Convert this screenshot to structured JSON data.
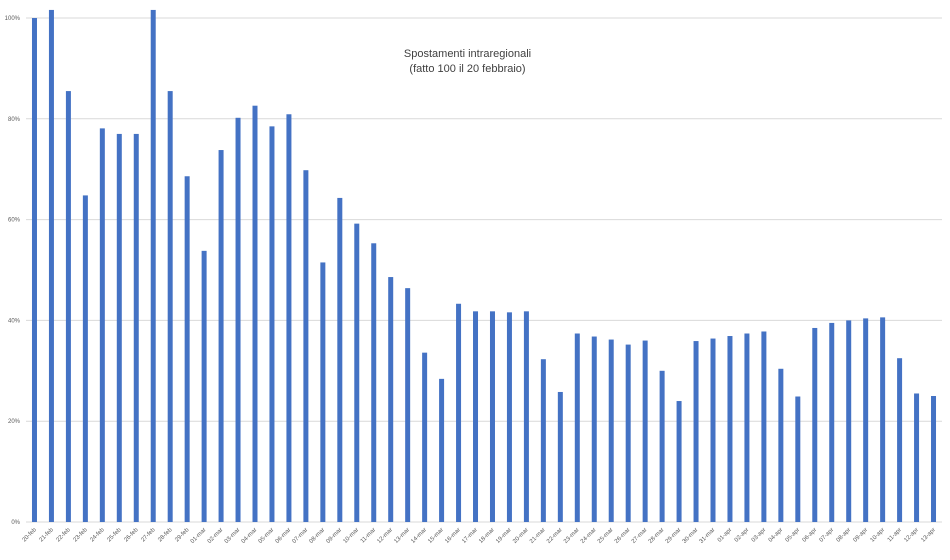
{
  "chart_data": {
    "type": "bar",
    "title": "Spostamenti intraregionali",
    "subtitle": "(fatto 100 il 20 febbraio)",
    "xlabel": "",
    "ylabel": "",
    "ylim": [
      0,
      100
    ],
    "yticks": [
      "0%",
      "20%",
      "40%",
      "60%",
      "80%",
      "100%"
    ],
    "grid": true,
    "bar_color": "#4472c4",
    "categories": [
      "20-feb",
      "21-feb",
      "22-feb",
      "23-feb",
      "24-feb",
      "25-feb",
      "26-feb",
      "27-feb",
      "28-feb",
      "29-feb",
      "01-mar",
      "02-mar",
      "03-mar",
      "04-mar",
      "05-mar",
      "06-mar",
      "07-mar",
      "08-mar",
      "09-mar",
      "10-mar",
      "11-mar",
      "12-mar",
      "13-mar",
      "14-mar",
      "15-mar",
      "16-mar",
      "17-mar",
      "18-mar",
      "19-mar",
      "20-mar",
      "21-mar",
      "22-mar",
      "23-mar",
      "24-mar",
      "25-mar",
      "26-mar",
      "27-mar",
      "28-mar",
      "29-mar",
      "30-mar",
      "31-mar",
      "01-apr",
      "02-apr",
      "03-apr",
      "04-apr",
      "05-apr",
      "06-apr",
      "07-apr",
      "08-apr",
      "09-apr",
      "10-apr",
      "11-apr",
      "12-apr",
      "13-apr"
    ],
    "values": [
      100,
      101.6,
      85.5,
      64.8,
      78.1,
      77,
      77,
      101.6,
      85.5,
      68.6,
      53.8,
      73.8,
      80.2,
      82.6,
      78.5,
      80.9,
      69.8,
      51.5,
      64.3,
      59.2,
      55.3,
      48.6,
      46.4,
      33.6,
      28.4,
      43.3,
      41.8,
      41.8,
      41.6,
      41.8,
      32.3,
      25.8,
      37.4,
      36.8,
      36.2,
      35.2,
      36,
      30,
      24,
      35.9,
      36.4,
      36.9,
      37.4,
      37.8,
      30.4,
      24.9,
      38.5,
      39.5,
      40,
      40.4,
      40.6,
      32.5,
      25.5,
      25
    ]
  }
}
